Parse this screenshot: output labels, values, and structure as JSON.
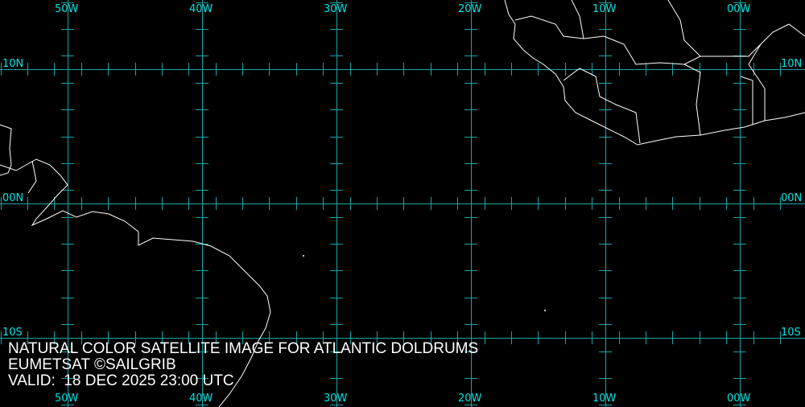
{
  "map": {
    "type": "satellite image with lat/lon graticule",
    "grid_color": "#1aa5a5",
    "label_color": "#00e5e5",
    "coastline_color": "#ffffff",
    "longitude_labels": [
      "50W",
      "40W",
      "30W",
      "20W",
      "10W",
      "00W"
    ],
    "latitude_labels": [
      "10N",
      "00N",
      "10S"
    ]
  },
  "caption": {
    "line1": "NATURAL COLOR SATELLITE IMAGE FOR ATLANTIC DOLDRUMS",
    "line2": "EUMETSAT ©SAILGRIB",
    "line3": "VALID:  18 DEC 2025 23:00 UTC"
  }
}
